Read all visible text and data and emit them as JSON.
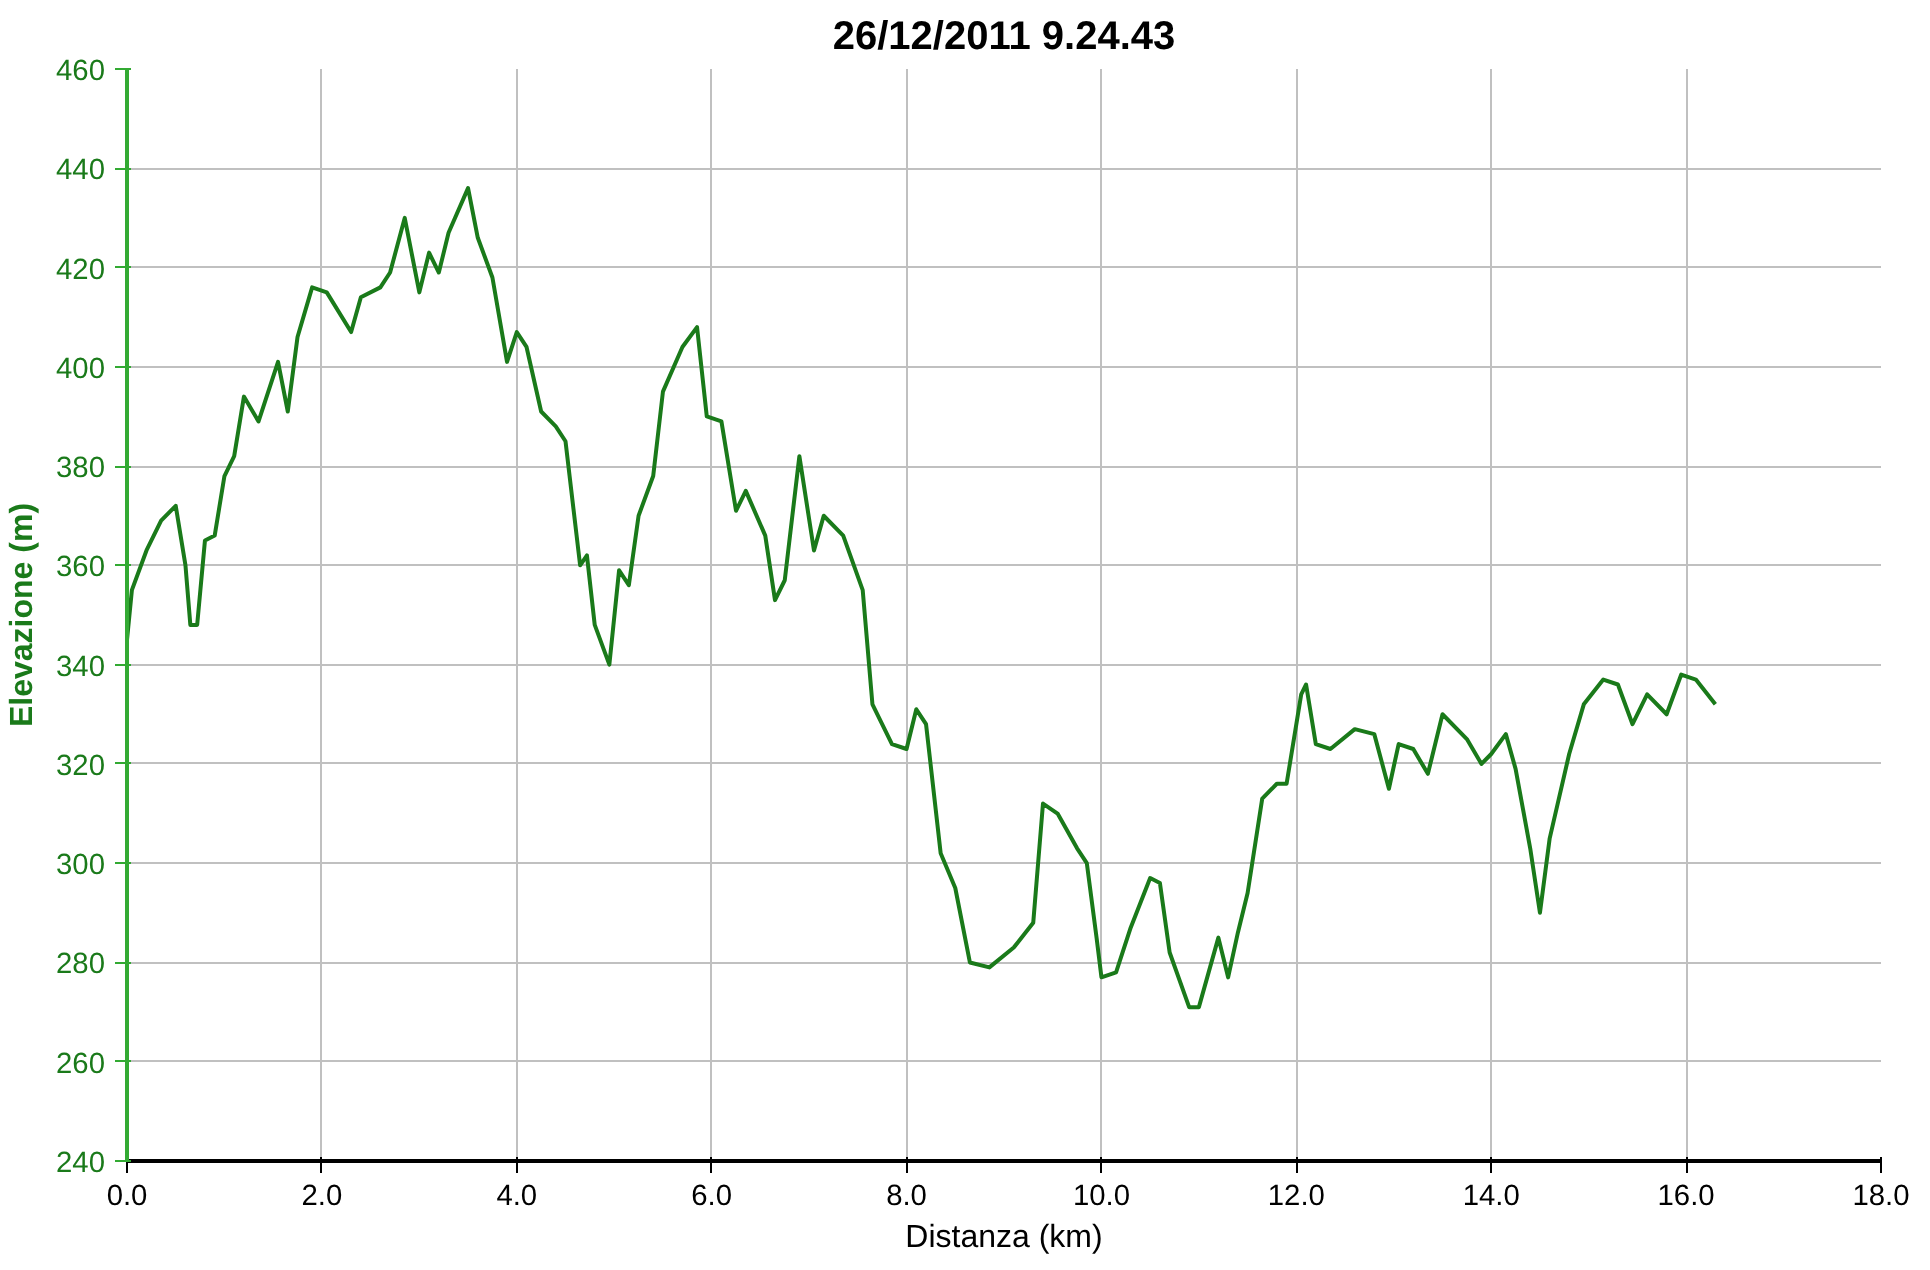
{
  "chart_data": {
    "type": "line",
    "title": "26/12/2011 9.24.43",
    "xlabel": "Distanza (km)",
    "ylabel": "Elevazione (m)",
    "xlim": [
      0,
      18
    ],
    "xticks": [
      {
        "value": 0,
        "label": "0.0"
      },
      {
        "value": 2,
        "label": "2.0"
      },
      {
        "value": 4,
        "label": "4.0"
      },
      {
        "value": 6,
        "label": "6.0"
      },
      {
        "value": 8,
        "label": "8.0"
      },
      {
        "value": 10,
        "label": "10.0"
      },
      {
        "value": 12,
        "label": "12.0"
      },
      {
        "value": 14,
        "label": "14.0"
      },
      {
        "value": 16,
        "label": "16.0"
      },
      {
        "value": 18,
        "label": "18.0"
      }
    ],
    "ylim": [
      240,
      460
    ],
    "yticks": [
      240,
      260,
      280,
      300,
      320,
      340,
      360,
      380,
      400,
      420,
      440,
      460
    ],
    "grid": true,
    "marker": "none",
    "line_style": "solid",
    "series": [
      {
        "color": "#1a7a1a",
        "x": [
          0.0,
          0.05,
          0.2,
          0.35,
          0.5,
          0.6,
          0.65,
          0.72,
          0.8,
          0.9,
          1.0,
          1.1,
          1.2,
          1.35,
          1.55,
          1.65,
          1.75,
          1.9,
          2.05,
          2.3,
          2.4,
          2.6,
          2.7,
          2.85,
          3.0,
          3.1,
          3.2,
          3.3,
          3.5,
          3.6,
          3.75,
          3.9,
          4.0,
          4.1,
          4.25,
          4.4,
          4.5,
          4.65,
          4.72,
          4.8,
          4.95,
          5.05,
          5.15,
          5.25,
          5.4,
          5.5,
          5.7,
          5.85,
          5.95,
          6.1,
          6.25,
          6.35,
          6.55,
          6.65,
          6.75,
          6.9,
          7.05,
          7.15,
          7.35,
          7.55,
          7.65,
          7.85,
          8.0,
          8.1,
          8.2,
          8.35,
          8.5,
          8.65,
          8.85,
          9.1,
          9.3,
          9.4,
          9.55,
          9.75,
          9.85,
          9.95,
          10.0,
          10.15,
          10.3,
          10.5,
          10.6,
          10.7,
          10.9,
          11.0,
          11.1,
          11.2,
          11.3,
          11.4,
          11.5,
          11.65,
          11.8,
          11.9,
          12.05,
          12.1,
          12.2,
          12.35,
          12.6,
          12.8,
          12.95,
          13.05,
          13.2,
          13.35,
          13.5,
          13.75,
          13.9,
          14.0,
          14.15,
          14.25,
          14.4,
          14.5,
          14.6,
          14.8,
          14.95,
          15.15,
          15.3,
          15.45,
          15.6,
          15.8,
          15.95,
          16.1,
          16.3
        ],
        "values": [
          345,
          355,
          363,
          369,
          372,
          360,
          348,
          348,
          365,
          366,
          378,
          382,
          394,
          389,
          401,
          391,
          406,
          416,
          415,
          407,
          414,
          416,
          419,
          430,
          415,
          423,
          419,
          427,
          436,
          426,
          418,
          401,
          407,
          404,
          391,
          388,
          385,
          360,
          362,
          348,
          340,
          359,
          356,
          370,
          378,
          395,
          404,
          408,
          390,
          389,
          371,
          375,
          366,
          353,
          357,
          382,
          363,
          370,
          366,
          355,
          332,
          324,
          323,
          331,
          328,
          302,
          295,
          280,
          279,
          283,
          288,
          312,
          310,
          303,
          300,
          285,
          277,
          278,
          287,
          297,
          296,
          282,
          271,
          271,
          278,
          285,
          277,
          286,
          294,
          313,
          316,
          316,
          334,
          336,
          324,
          323,
          327,
          326,
          315,
          324,
          323,
          318,
          330,
          325,
          320,
          322,
          326,
          319,
          303,
          290,
          305,
          322,
          332,
          337,
          336,
          328,
          334,
          330,
          338,
          337,
          332
        ]
      }
    ]
  }
}
